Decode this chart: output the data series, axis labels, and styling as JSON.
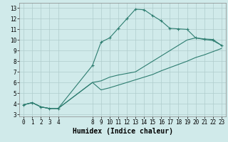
{
  "xlabel": "Humidex (Indice chaleur)",
  "bg_color": "#d0eaea",
  "line_color": "#2d7d70",
  "grid_color": "#b0cccc",
  "line1_x": [
    0,
    1,
    2,
    3,
    4,
    8,
    9,
    10,
    11,
    12,
    13,
    14,
    15,
    16,
    17,
    18,
    19,
    20,
    21,
    22,
    23
  ],
  "line1_y": [
    3.9,
    4.1,
    3.7,
    3.55,
    3.55,
    7.6,
    9.8,
    10.2,
    11.1,
    12.0,
    12.9,
    12.85,
    12.3,
    11.8,
    11.1,
    11.05,
    11.0,
    10.2,
    10.1,
    10.05,
    9.5
  ],
  "line2_x": [
    0,
    1,
    2,
    3,
    4,
    8,
    9,
    10,
    11,
    12,
    13,
    14,
    15,
    16,
    17,
    18,
    19,
    20,
    21,
    22,
    23
  ],
  "line2_y": [
    3.9,
    4.1,
    3.7,
    3.55,
    3.55,
    6.0,
    6.15,
    6.5,
    6.7,
    6.85,
    7.0,
    7.5,
    8.0,
    8.5,
    9.0,
    9.5,
    10.0,
    10.2,
    10.05,
    9.95,
    9.5
  ],
  "line3_x": [
    0,
    1,
    2,
    3,
    4,
    8,
    9,
    10,
    11,
    12,
    13,
    14,
    15,
    16,
    17,
    18,
    19,
    20,
    21,
    22,
    23
  ],
  "line3_y": [
    3.9,
    4.1,
    3.7,
    3.55,
    3.55,
    6.0,
    5.3,
    5.5,
    5.75,
    6.0,
    6.25,
    6.5,
    6.75,
    7.1,
    7.4,
    7.7,
    8.0,
    8.35,
    8.6,
    8.9,
    9.2
  ],
  "xlim": [
    -0.5,
    23.5
  ],
  "ylim": [
    2.8,
    13.5
  ],
  "xticks": [
    0,
    1,
    2,
    3,
    4,
    8,
    9,
    10,
    11,
    12,
    13,
    14,
    15,
    16,
    17,
    18,
    19,
    20,
    21,
    22,
    23
  ],
  "yticks": [
    3,
    4,
    5,
    6,
    7,
    8,
    9,
    10,
    11,
    12,
    13
  ],
  "tick_fontsize": 5.5,
  "label_fontsize": 7.0
}
